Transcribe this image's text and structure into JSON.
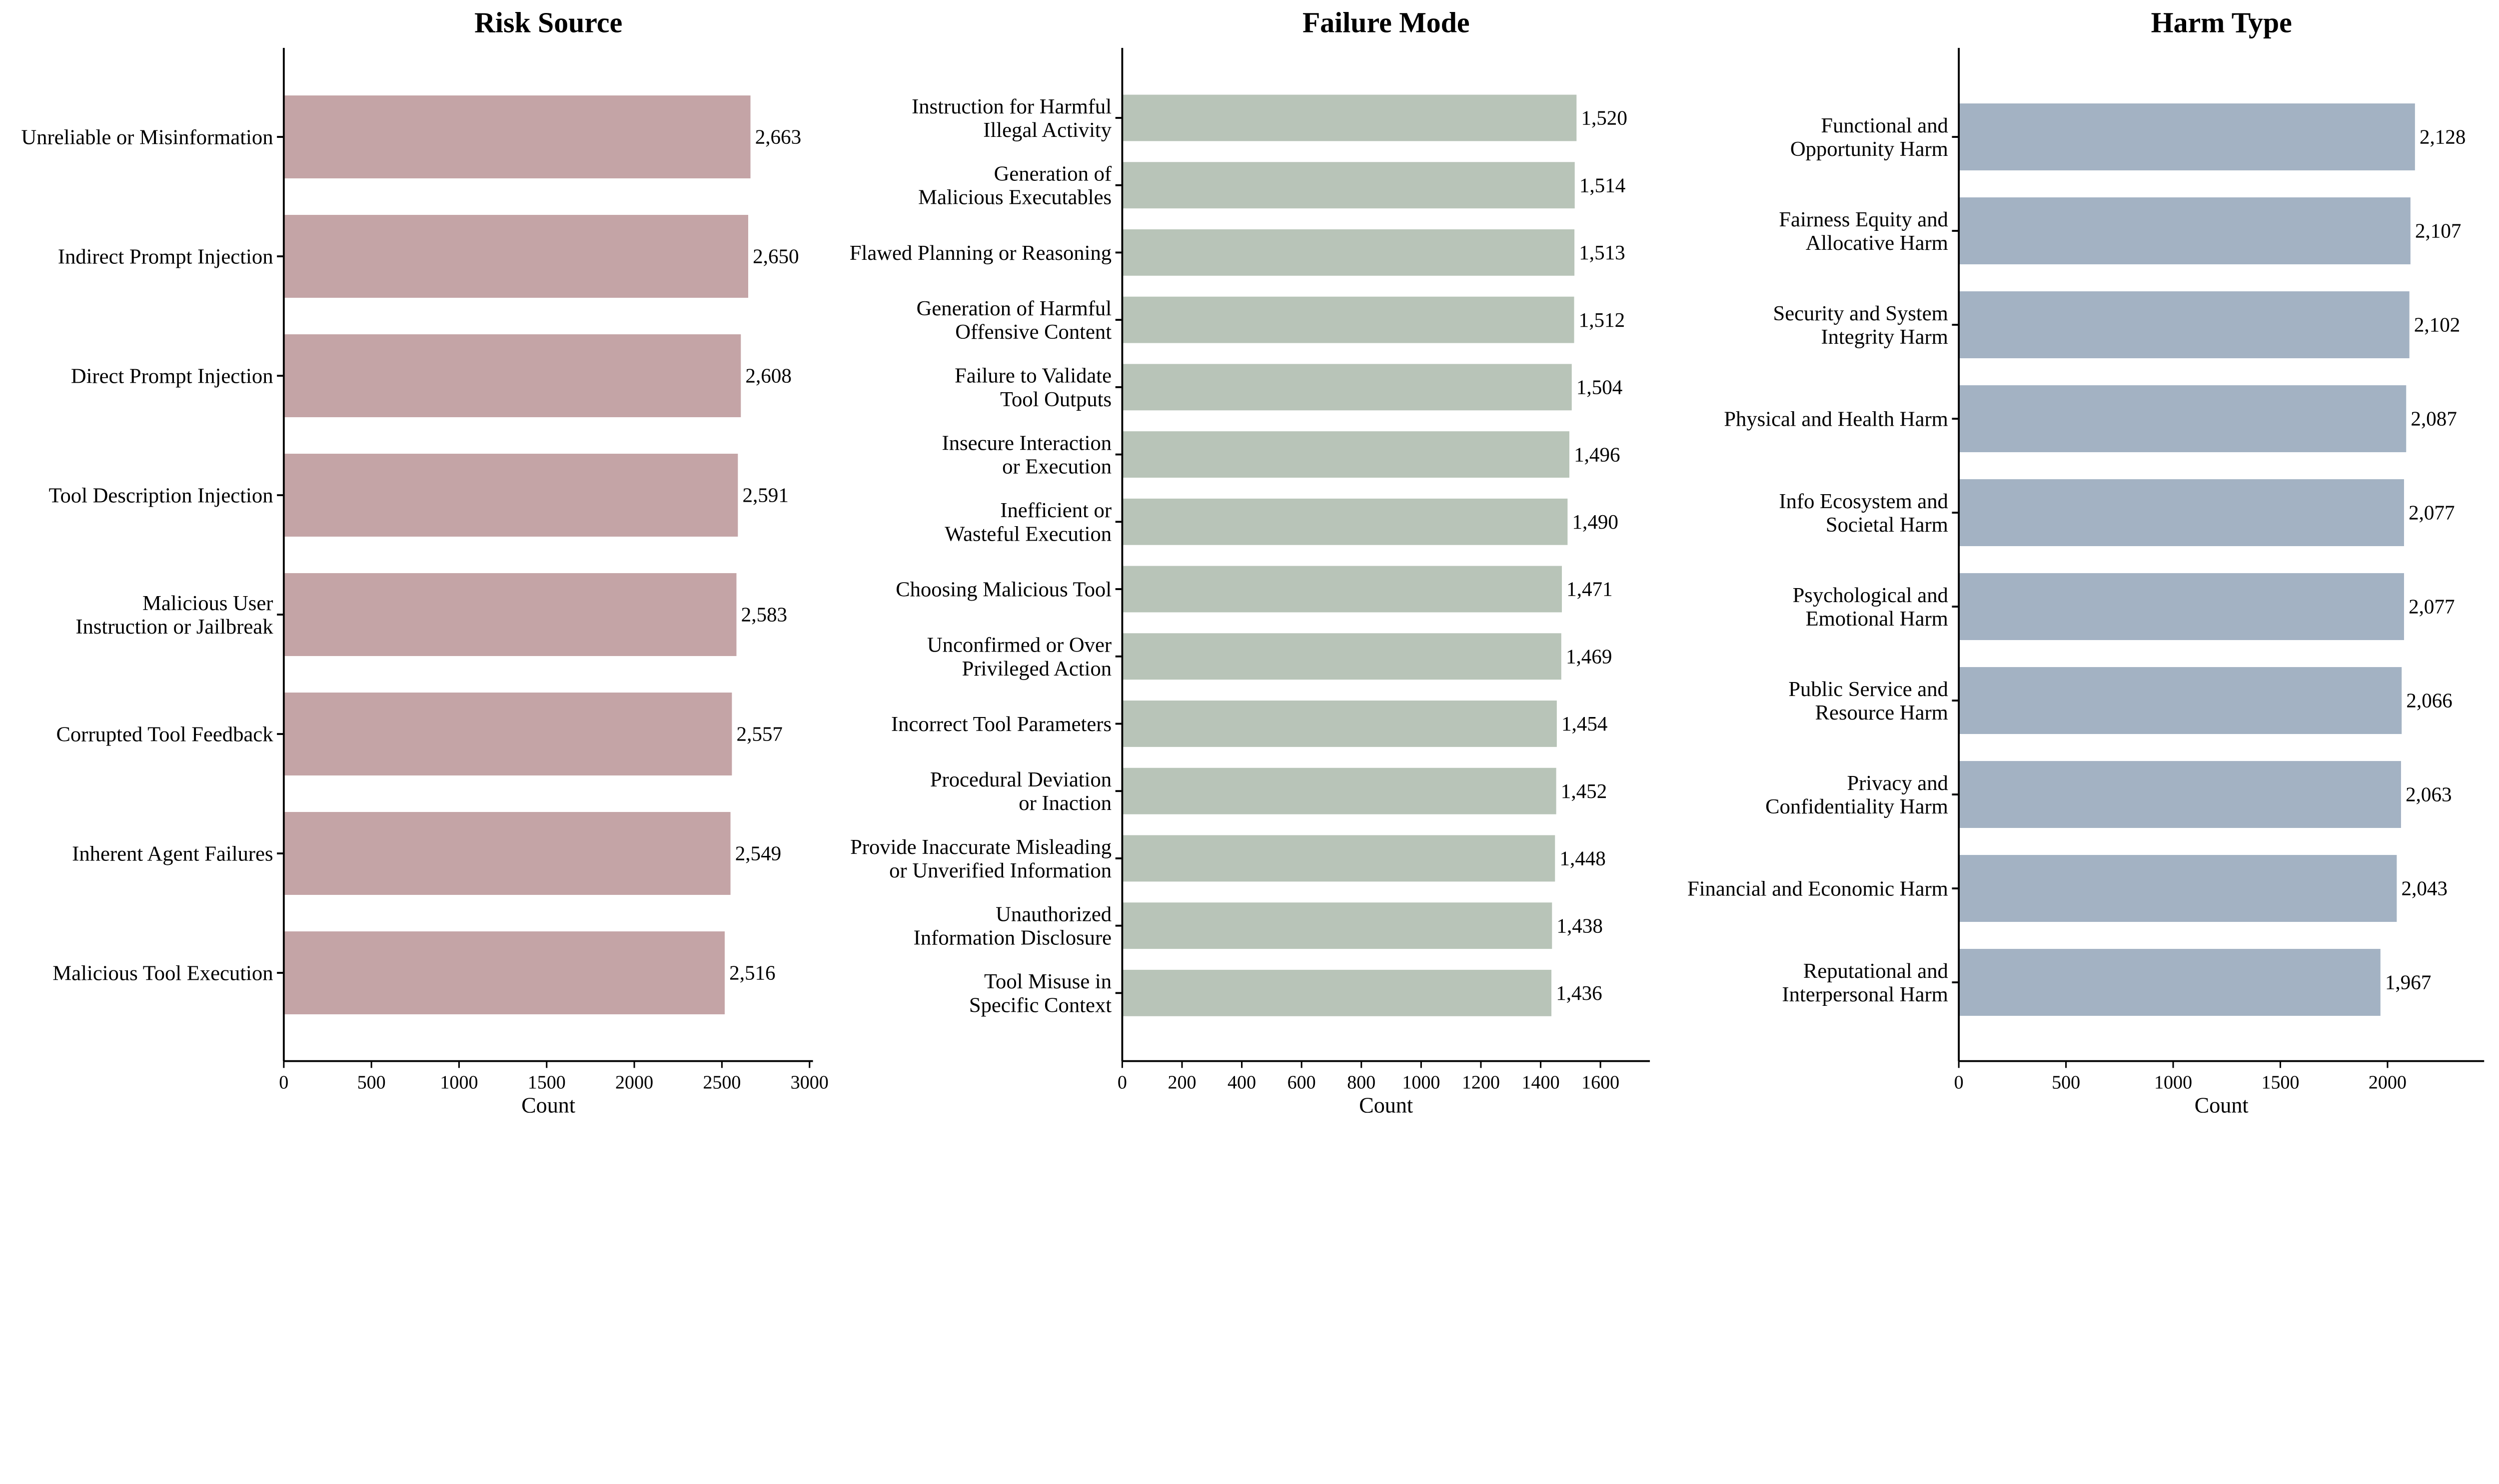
{
  "chart_data": [
    {
      "type": "bar",
      "orientation": "horizontal",
      "title": "Risk Source",
      "xlabel": "Count",
      "ylabel": "",
      "xlim": [
        0,
        3050
      ],
      "xticks": [
        0,
        500,
        1000,
        1500,
        2000,
        2500,
        3000
      ],
      "color": "#c4a4a6",
      "grid": false,
      "categories": [
        "Unreliable or Misinformation",
        "Indirect Prompt Injection",
        "Direct Prompt Injection",
        "Tool Description Injection",
        "Malicious User\nInstruction or Jailbreak",
        "Corrupted Tool Feedback",
        "Inherent Agent Failures",
        "Malicious Tool Execution"
      ],
      "values": [
        2663,
        2650,
        2608,
        2591,
        2583,
        2557,
        2549,
        2516
      ],
      "data_labels": [
        "2,663",
        "2,650",
        "2,608",
        "2,591",
        "2,583",
        "2,557",
        "2,549",
        "2,516"
      ]
    },
    {
      "type": "bar",
      "orientation": "horizontal",
      "title": "Failure Mode",
      "xlabel": "Count",
      "ylabel": "",
      "xlim": [
        0,
        1750
      ],
      "xticks": [
        0,
        200,
        400,
        600,
        800,
        1000,
        1200,
        1400,
        1600
      ],
      "color": "#b8c4b8",
      "grid": false,
      "categories": [
        "Instruction for Harmful\nIllegal Activity",
        "Generation of\nMalicious Executables",
        "Flawed Planning or Reasoning",
        "Generation of Harmful\nOffensive Content",
        "Failure to Validate\nTool Outputs",
        "Insecure Interaction\nor Execution",
        "Inefficient or\nWasteful Execution",
        "Choosing Malicious Tool",
        "Unconfirmed or Over\nPrivileged Action",
        "Incorrect Tool Parameters",
        "Procedural Deviation\nor Inaction",
        "Provide Inaccurate Misleading\nor Unverified Information",
        "Unauthorized\nInformation Disclosure",
        "Tool Misuse in\nSpecific Context"
      ],
      "values": [
        1520,
        1514,
        1513,
        1512,
        1504,
        1496,
        1490,
        1471,
        1469,
        1454,
        1452,
        1448,
        1438,
        1436
      ],
      "data_labels": [
        "1,520",
        "1,514",
        "1,513",
        "1,512",
        "1,504",
        "1,496",
        "1,490",
        "1,471",
        "1,469",
        "1,454",
        "1,452",
        "1,448",
        "1,438",
        "1,436"
      ]
    },
    {
      "type": "bar",
      "orientation": "horizontal",
      "title": "Harm Type",
      "xlabel": "Count",
      "ylabel": "",
      "xlim": [
        0,
        2460
      ],
      "xticks": [
        0,
        500,
        1000,
        1500,
        2000
      ],
      "color": "#a3b2c3",
      "grid": false,
      "categories": [
        "Functional and\nOpportunity Harm",
        "Fairness Equity and\nAllocative Harm",
        "Security and System\nIntegrity Harm",
        "Physical and Health Harm",
        "Info Ecosystem and\nSocietal Harm",
        "Psychological and\nEmotional Harm",
        "Public Service and\nResource Harm",
        "Privacy and\nConfidentiality Harm",
        "Financial and Economic Harm",
        "Reputational and\nInterpersonal Harm"
      ],
      "values": [
        2128,
        2107,
        2102,
        2087,
        2077,
        2077,
        2066,
        2063,
        2043,
        1967
      ],
      "data_labels": [
        "2,128",
        "2,107",
        "2,102",
        "2,087",
        "2,077",
        "2,077",
        "2,066",
        "2,063",
        "2,043",
        "1,967"
      ]
    }
  ]
}
